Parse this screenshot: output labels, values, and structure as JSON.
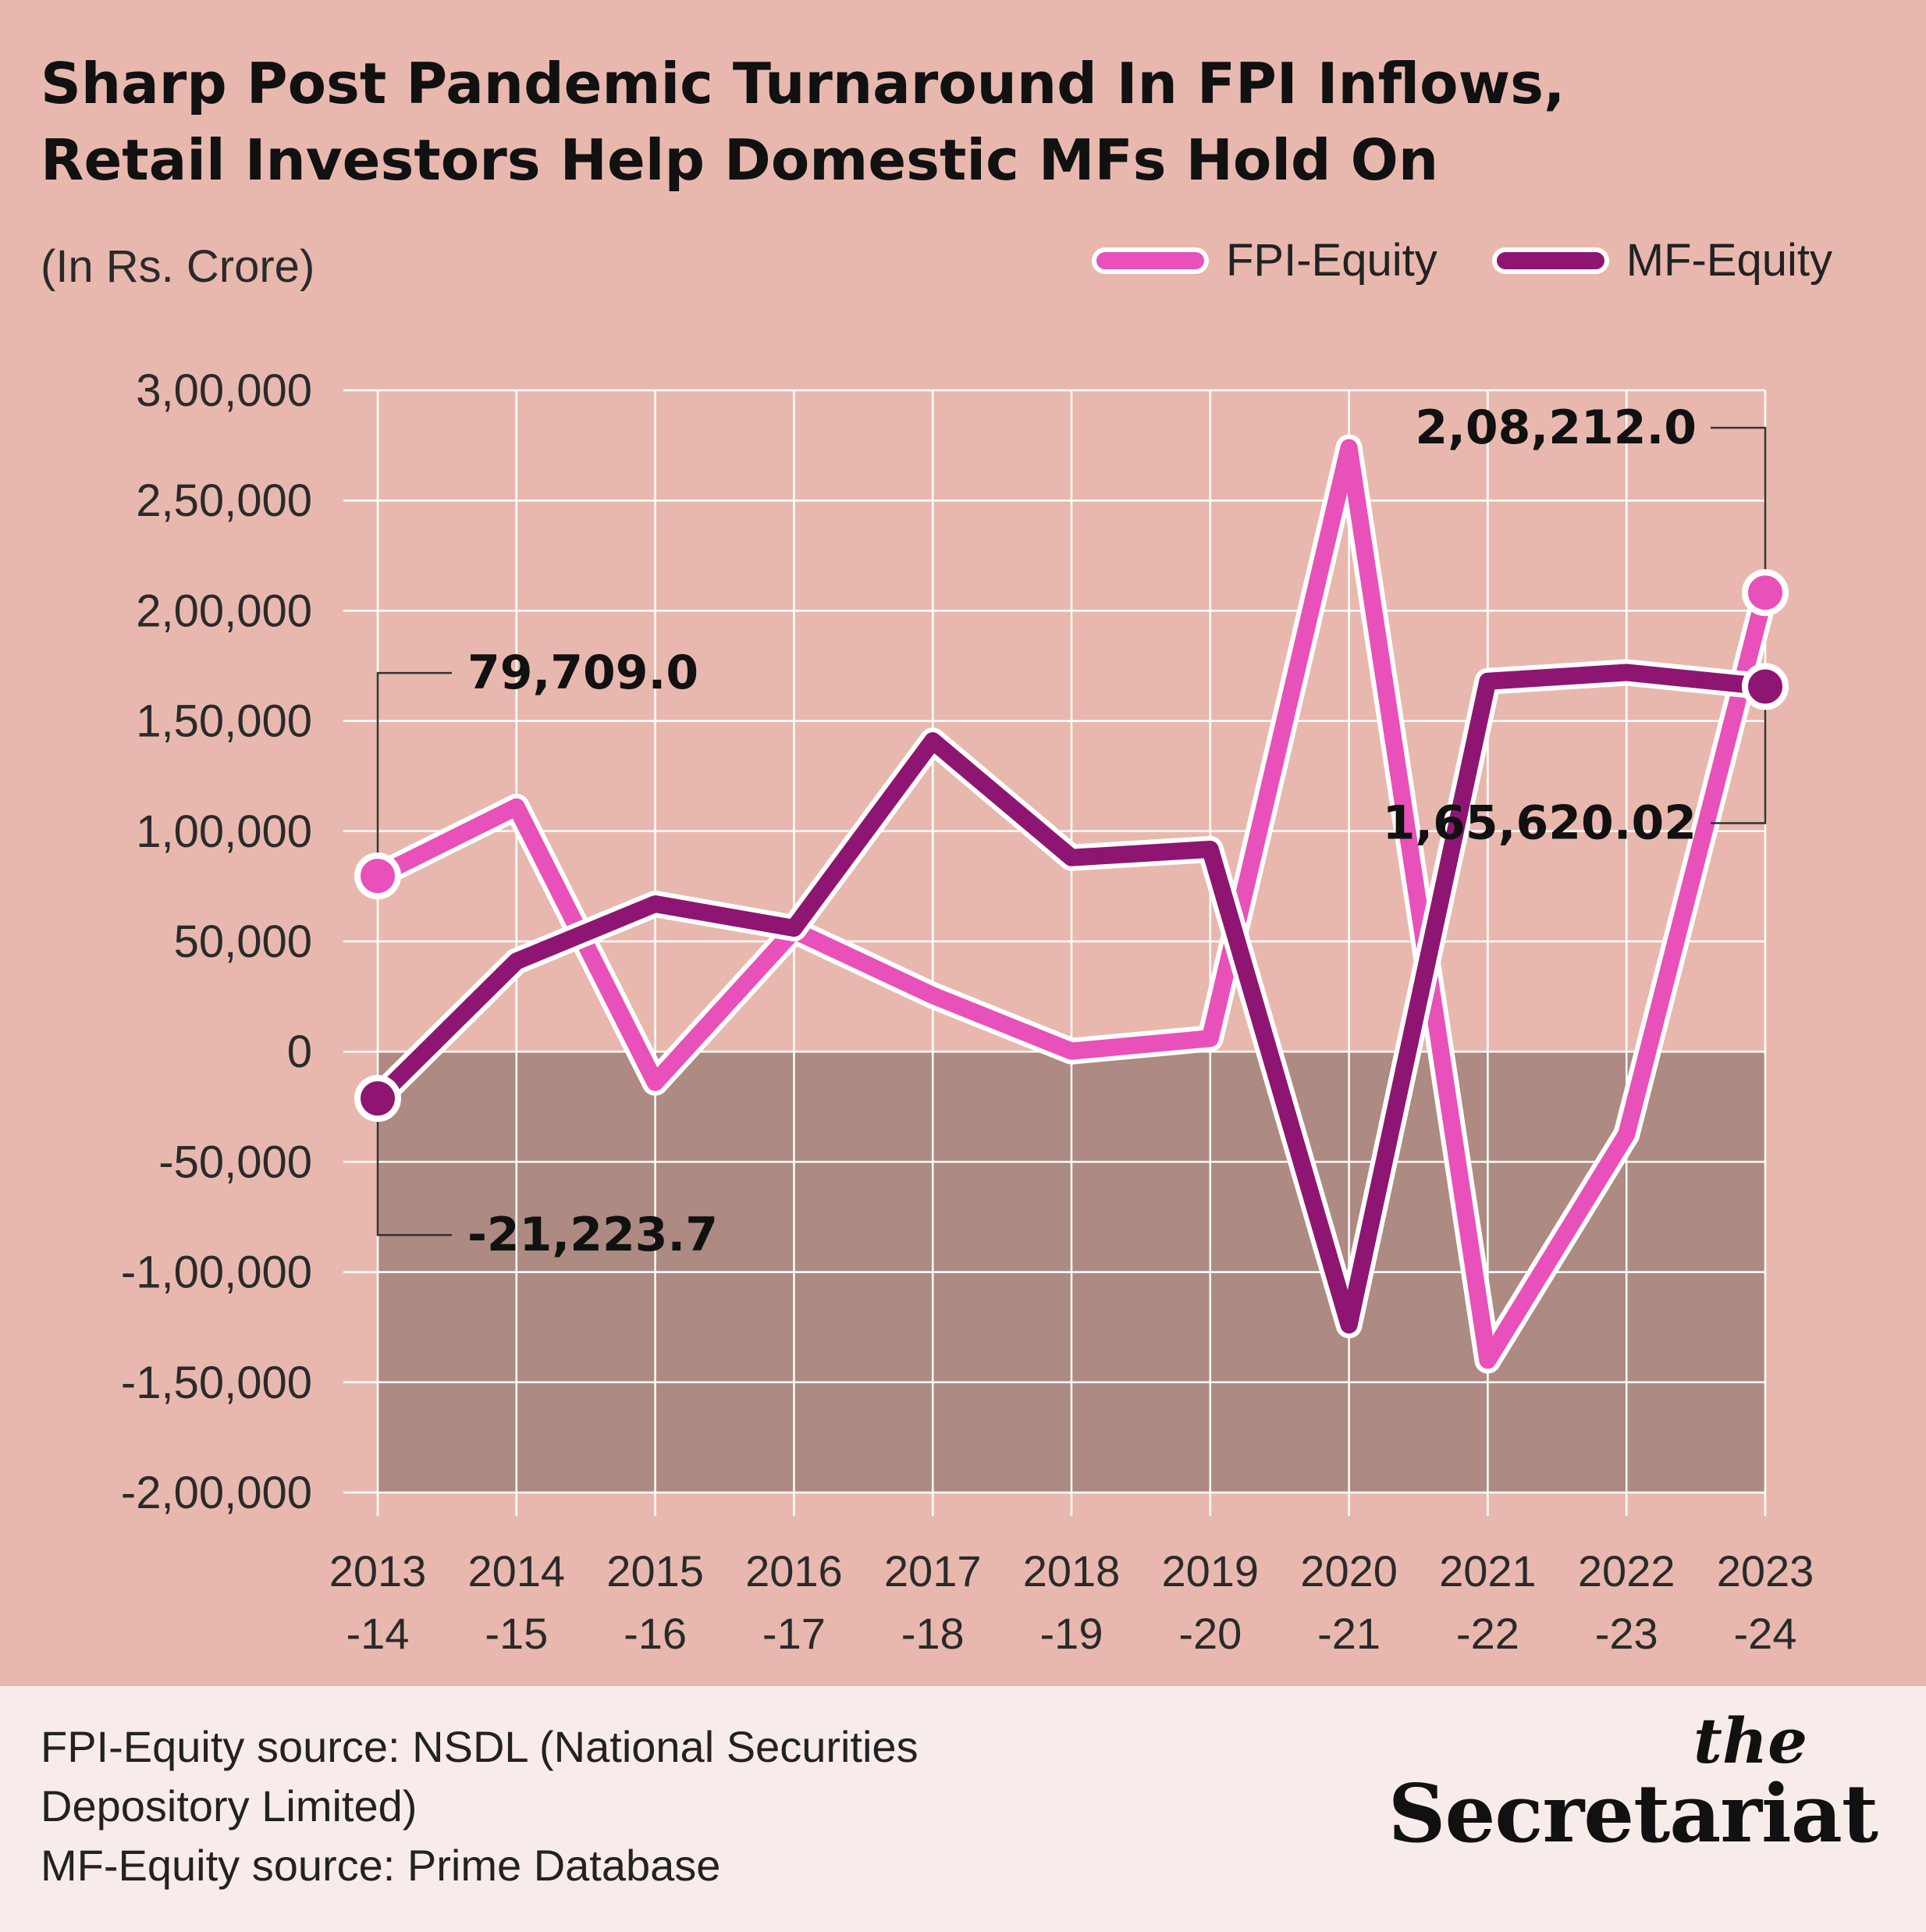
{
  "title_lines": [
    "Sharp Post Pandemic Turnaround In FPI Inflows,",
    "Retail Investors Help Domestic MFs Hold On"
  ],
  "unit_label": "(In Rs. Crore)",
  "legend": [
    {
      "label": "FPI-Equity",
      "color": "#e851b9"
    },
    {
      "label": "MF-Equity",
      "color": "#8e1672"
    }
  ],
  "chart_data": {
    "type": "line",
    "title": "Sharp Post Pandemic Turnaround In FPI Inflows, Retail Investors Help Domestic MFs Hold On",
    "ylabel": "(In Rs. Crore)",
    "xlabel": "",
    "ylim": [
      -200000,
      300000
    ],
    "yticks": [
      300000,
      250000,
      200000,
      150000,
      100000,
      50000,
      0,
      -50000,
      -100000,
      -150000,
      -200000
    ],
    "ytick_labels": [
      "3,00,000",
      "2,50,000",
      "2,00,000",
      "1,50,000",
      "1,00,000",
      "50,000",
      "0",
      "-50,000",
      "-1,00,000",
      "-1,50,000",
      "-2,00,000"
    ],
    "categories": [
      "2013-14",
      "2014-15",
      "2015-16",
      "2016-17",
      "2017-18",
      "2018-19",
      "2019-20",
      "2020-21",
      "2021-22",
      "2022-23",
      "2023-24"
    ],
    "category_lines": [
      [
        "2013",
        "-14"
      ],
      [
        "2014",
        "-15"
      ],
      [
        "2015",
        "-16"
      ],
      [
        "2016",
        "-17"
      ],
      [
        "2017",
        "-18"
      ],
      [
        "2018",
        "-19"
      ],
      [
        "2019",
        "-20"
      ],
      [
        "2020",
        "-21"
      ],
      [
        "2021",
        "-22"
      ],
      [
        "2022",
        "-23"
      ],
      [
        "2023",
        "-24"
      ]
    ],
    "series": [
      {
        "name": "FPI-Equity",
        "color": "#e851b9",
        "values": [
          79709.0,
          111000,
          -14000,
          55000,
          25500,
          200,
          6000,
          274000,
          -140000,
          -37600,
          208212.0
        ]
      },
      {
        "name": "MF-Equity",
        "color": "#8e1672",
        "values": [
          -21223.7,
          41000,
          67000,
          56000,
          141000,
          88000,
          91800,
          -124000,
          168000,
          172000,
          165620.02
        ]
      }
    ],
    "grid": true,
    "negative_region_color": "#ad8a82",
    "annotations": [
      {
        "text": "79,709.0",
        "series": "FPI-Equity",
        "index": 0,
        "side": "above"
      },
      {
        "text": "-21,223.7",
        "series": "MF-Equity",
        "index": 0,
        "side": "below"
      },
      {
        "text": "2,08,212.0",
        "series": "FPI-Equity",
        "index": 10,
        "side": "above"
      },
      {
        "text": "1,65,620.02",
        "series": "MF-Equity",
        "index": 10,
        "side": "below"
      }
    ]
  },
  "source_lines": [
    "FPI-Equity source: NSDL (National Securities",
    "Depository Limited)",
    "MF-Equity source: Prime Database"
  ],
  "logo": {
    "line1": "the",
    "line2": "Secretariat"
  }
}
